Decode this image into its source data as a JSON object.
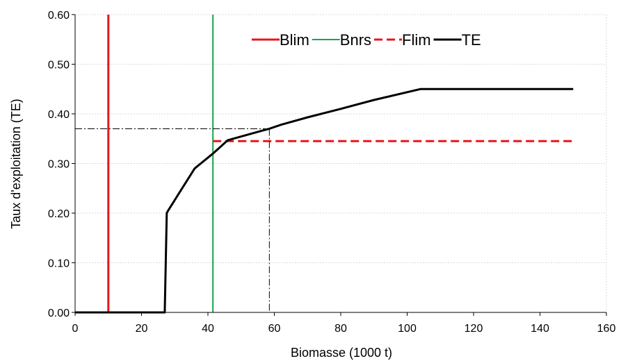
{
  "chart_data": {
    "type": "line",
    "title": "",
    "xlabel": "Biomasse (1000 t)",
    "ylabel": "Taux d'exploitation (TE)",
    "xlim": [
      0,
      160
    ],
    "ylim": [
      0,
      0.6
    ],
    "xticks": [
      0,
      20,
      40,
      60,
      80,
      100,
      120,
      140,
      160
    ],
    "yticks": [
      0,
      0.1,
      0.2,
      0.3,
      0.4,
      0.5,
      0.6
    ],
    "xtick_labels": [
      "0",
      "20",
      "40",
      "60",
      "80",
      "100",
      "120",
      "140",
      "160"
    ],
    "ytick_labels": [
      "0.00",
      "0.10",
      "0.20",
      "0.30",
      "0.40",
      "0.50",
      "0.60"
    ],
    "grid": true,
    "legend_position": "top-right",
    "series": [
      {
        "name": "Blim",
        "color": "#e8151b",
        "style": "solid",
        "x": [
          10,
          10
        ],
        "y": [
          0,
          0.6
        ]
      },
      {
        "name": "Bnrs",
        "color": "#13a54a",
        "style": "solid",
        "x": [
          41.5,
          41.5
        ],
        "y": [
          0,
          0.6
        ]
      },
      {
        "name": "Flim",
        "color": "#e8151b",
        "style": "dashed",
        "x": [
          41.5,
          150
        ],
        "y": [
          0.345,
          0.345
        ]
      },
      {
        "name": "TE",
        "color": "#000000",
        "style": "solid",
        "x": [
          0,
          27,
          27.6,
          28,
          36,
          41.5,
          46,
          58.5,
          62,
          70,
          80,
          90,
          104,
          150
        ],
        "y": [
          0,
          0,
          0.2,
          0.205,
          0.29,
          0.32,
          0.347,
          0.37,
          0.378,
          0.393,
          0.41,
          0.428,
          0.45,
          0.45
        ]
      }
    ],
    "annotations": [
      {
        "type": "reference-lines",
        "x": 58.5,
        "y": 0.37,
        "color": "#000000",
        "style": "dash-dot"
      }
    ]
  }
}
